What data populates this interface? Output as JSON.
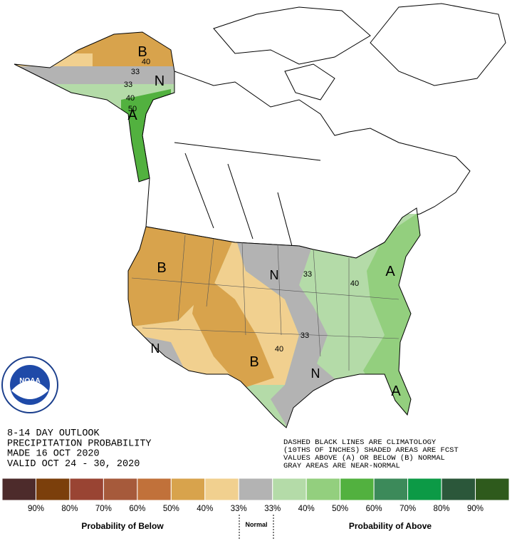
{
  "map": {
    "info": [
      "8-14 DAY OUTLOOK",
      "PRECIPITATION PROBABILITY",
      "MADE  16 OCT 2020",
      "VALID  OCT 24 - 30, 2020"
    ],
    "notes": [
      "DASHED BLACK LINES ARE CLIMATOLOGY",
      "(10THS OF INCHES) SHADED AREAS ARE FCST",
      "VALUES ABOVE (A) OR BELOW (B) NORMAL",
      "GRAY AREAS ARE NEAR-NORMAL"
    ],
    "logo": "NOAA",
    "region_labels": [
      "B",
      "40",
      "33",
      "N",
      "33",
      "40",
      "50",
      "A",
      "B",
      "N",
      "33",
      "40",
      "A",
      "33",
      "40",
      "B",
      "N",
      "N",
      "A"
    ]
  },
  "legend": {
    "colors": [
      "#4d2b2b",
      "#7b3f0b",
      "#994433",
      "#a65a3b",
      "#c1713a",
      "#d8a34c",
      "#f1d08f",
      "#b3b3b3",
      "#b4dba8",
      "#93cf7e",
      "#52b13f",
      "#3c8a5a",
      "#0c9a46",
      "#2b573a",
      "#2e5a1c"
    ],
    "labels": [
      "90%",
      "80%",
      "70%",
      "60%",
      "50%",
      "40%",
      "33%",
      "33%",
      "40%",
      "50%",
      "60%",
      "70%",
      "80%",
      "90%"
    ],
    "below": "Probability of Below",
    "normal": "Normal",
    "above": "Probability of Above"
  }
}
